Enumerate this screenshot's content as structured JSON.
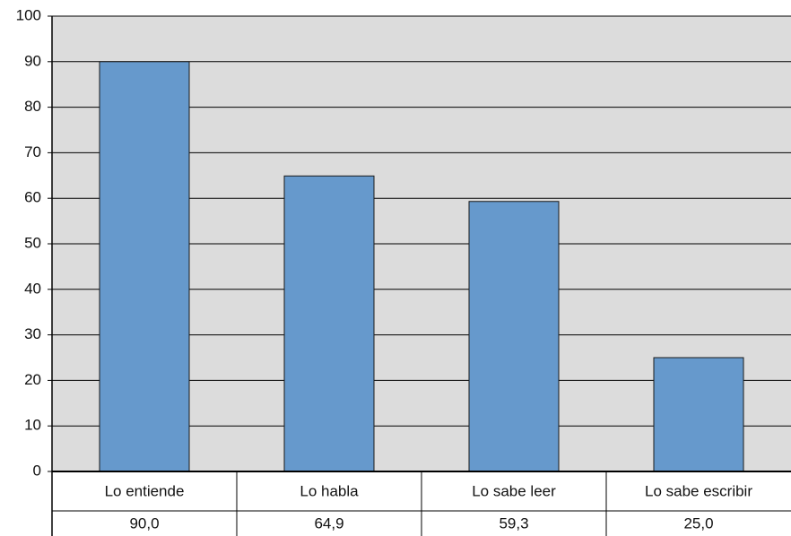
{
  "chart_data": {
    "type": "bar",
    "categories": [
      "Lo entiende",
      "Lo habla",
      "Lo sabe leer",
      "Lo sabe escribir"
    ],
    "values": [
      90,
      64.9,
      59.3,
      25
    ],
    "value_labels": [
      "90,0",
      "64,9",
      "59,3",
      "25,0"
    ],
    "color": "#6699cc",
    "ylim": [
      0,
      100
    ],
    "yticks": [
      0,
      10,
      20,
      30,
      40,
      50,
      60,
      70,
      80,
      90,
      100
    ],
    "grid": true
  }
}
